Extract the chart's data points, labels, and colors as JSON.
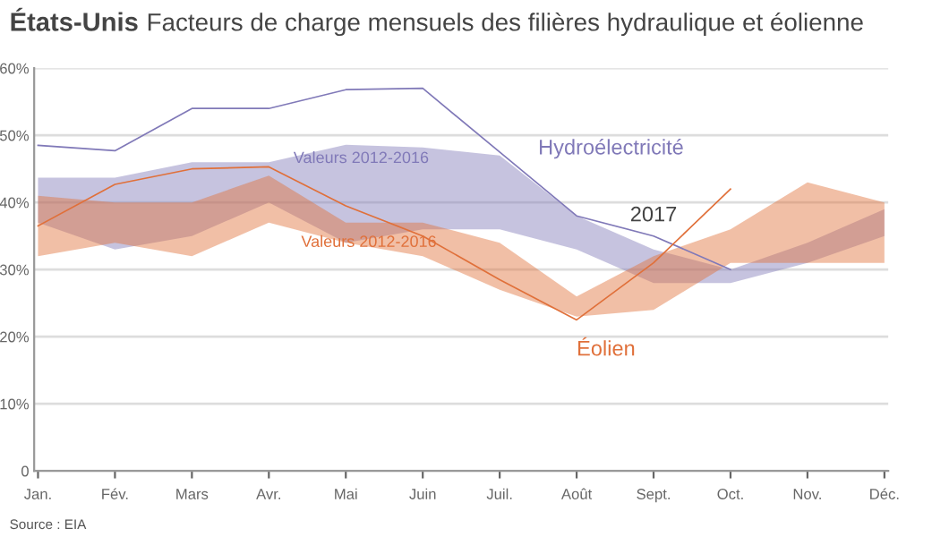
{
  "chart_data": {
    "type": "line",
    "title": "États-Unis",
    "subtitle": "Facteurs de charge mensuels des filières hydraulique et éolienne",
    "categories": [
      "Jan.",
      "Fév.",
      "Mars",
      "Avr.",
      "Mai",
      "Juin",
      "Juil.",
      "Août",
      "Sept.",
      "Oct.",
      "Nov.",
      "Déc."
    ],
    "series": [
      {
        "name": "Hydroélectricité",
        "color": "#8079b8",
        "values": [
          48.5,
          47.7,
          54,
          54,
          56.8,
          57,
          47.5,
          38,
          35,
          30,
          null,
          null
        ],
        "lower": [
          37,
          33,
          35,
          40,
          34,
          36,
          36,
          33,
          28,
          28,
          31,
          35
        ],
        "upper": [
          43.7,
          43.7,
          46,
          46,
          48.6,
          48.2,
          47,
          38,
          33,
          30,
          34,
          39
        ]
      },
      {
        "name": "Éolien",
        "color": "#e0703a",
        "values": [
          36.5,
          42.7,
          45,
          45.3,
          39.5,
          35,
          28.5,
          22.5,
          31,
          42,
          null,
          null
        ],
        "lower": [
          32,
          34,
          32,
          37,
          34,
          32,
          27,
          23,
          24,
          31,
          31,
          31
        ],
        "upper": [
          41,
          40,
          40,
          44,
          37,
          37,
          34,
          26,
          32,
          36,
          43,
          40
        ]
      }
    ],
    "annotations": [
      "Valeurs 2012-2016",
      "Valeurs 2012-2016",
      "2017",
      "Source : EIA"
    ],
    "ylim": [
      0,
      60
    ],
    "yticks": [
      {
        "value": 0,
        "label": "0"
      },
      {
        "value": 10,
        "label": "10%"
      },
      {
        "value": 20,
        "label": "20%"
      },
      {
        "value": 30,
        "label": "30%"
      },
      {
        "value": 40,
        "label": "40%"
      },
      {
        "value": 50,
        "label": "50%"
      },
      {
        "value": 60,
        "label": "60%"
      }
    ],
    "grid": "y",
    "legend": false,
    "marker": "none",
    "line_style": "solid"
  }
}
